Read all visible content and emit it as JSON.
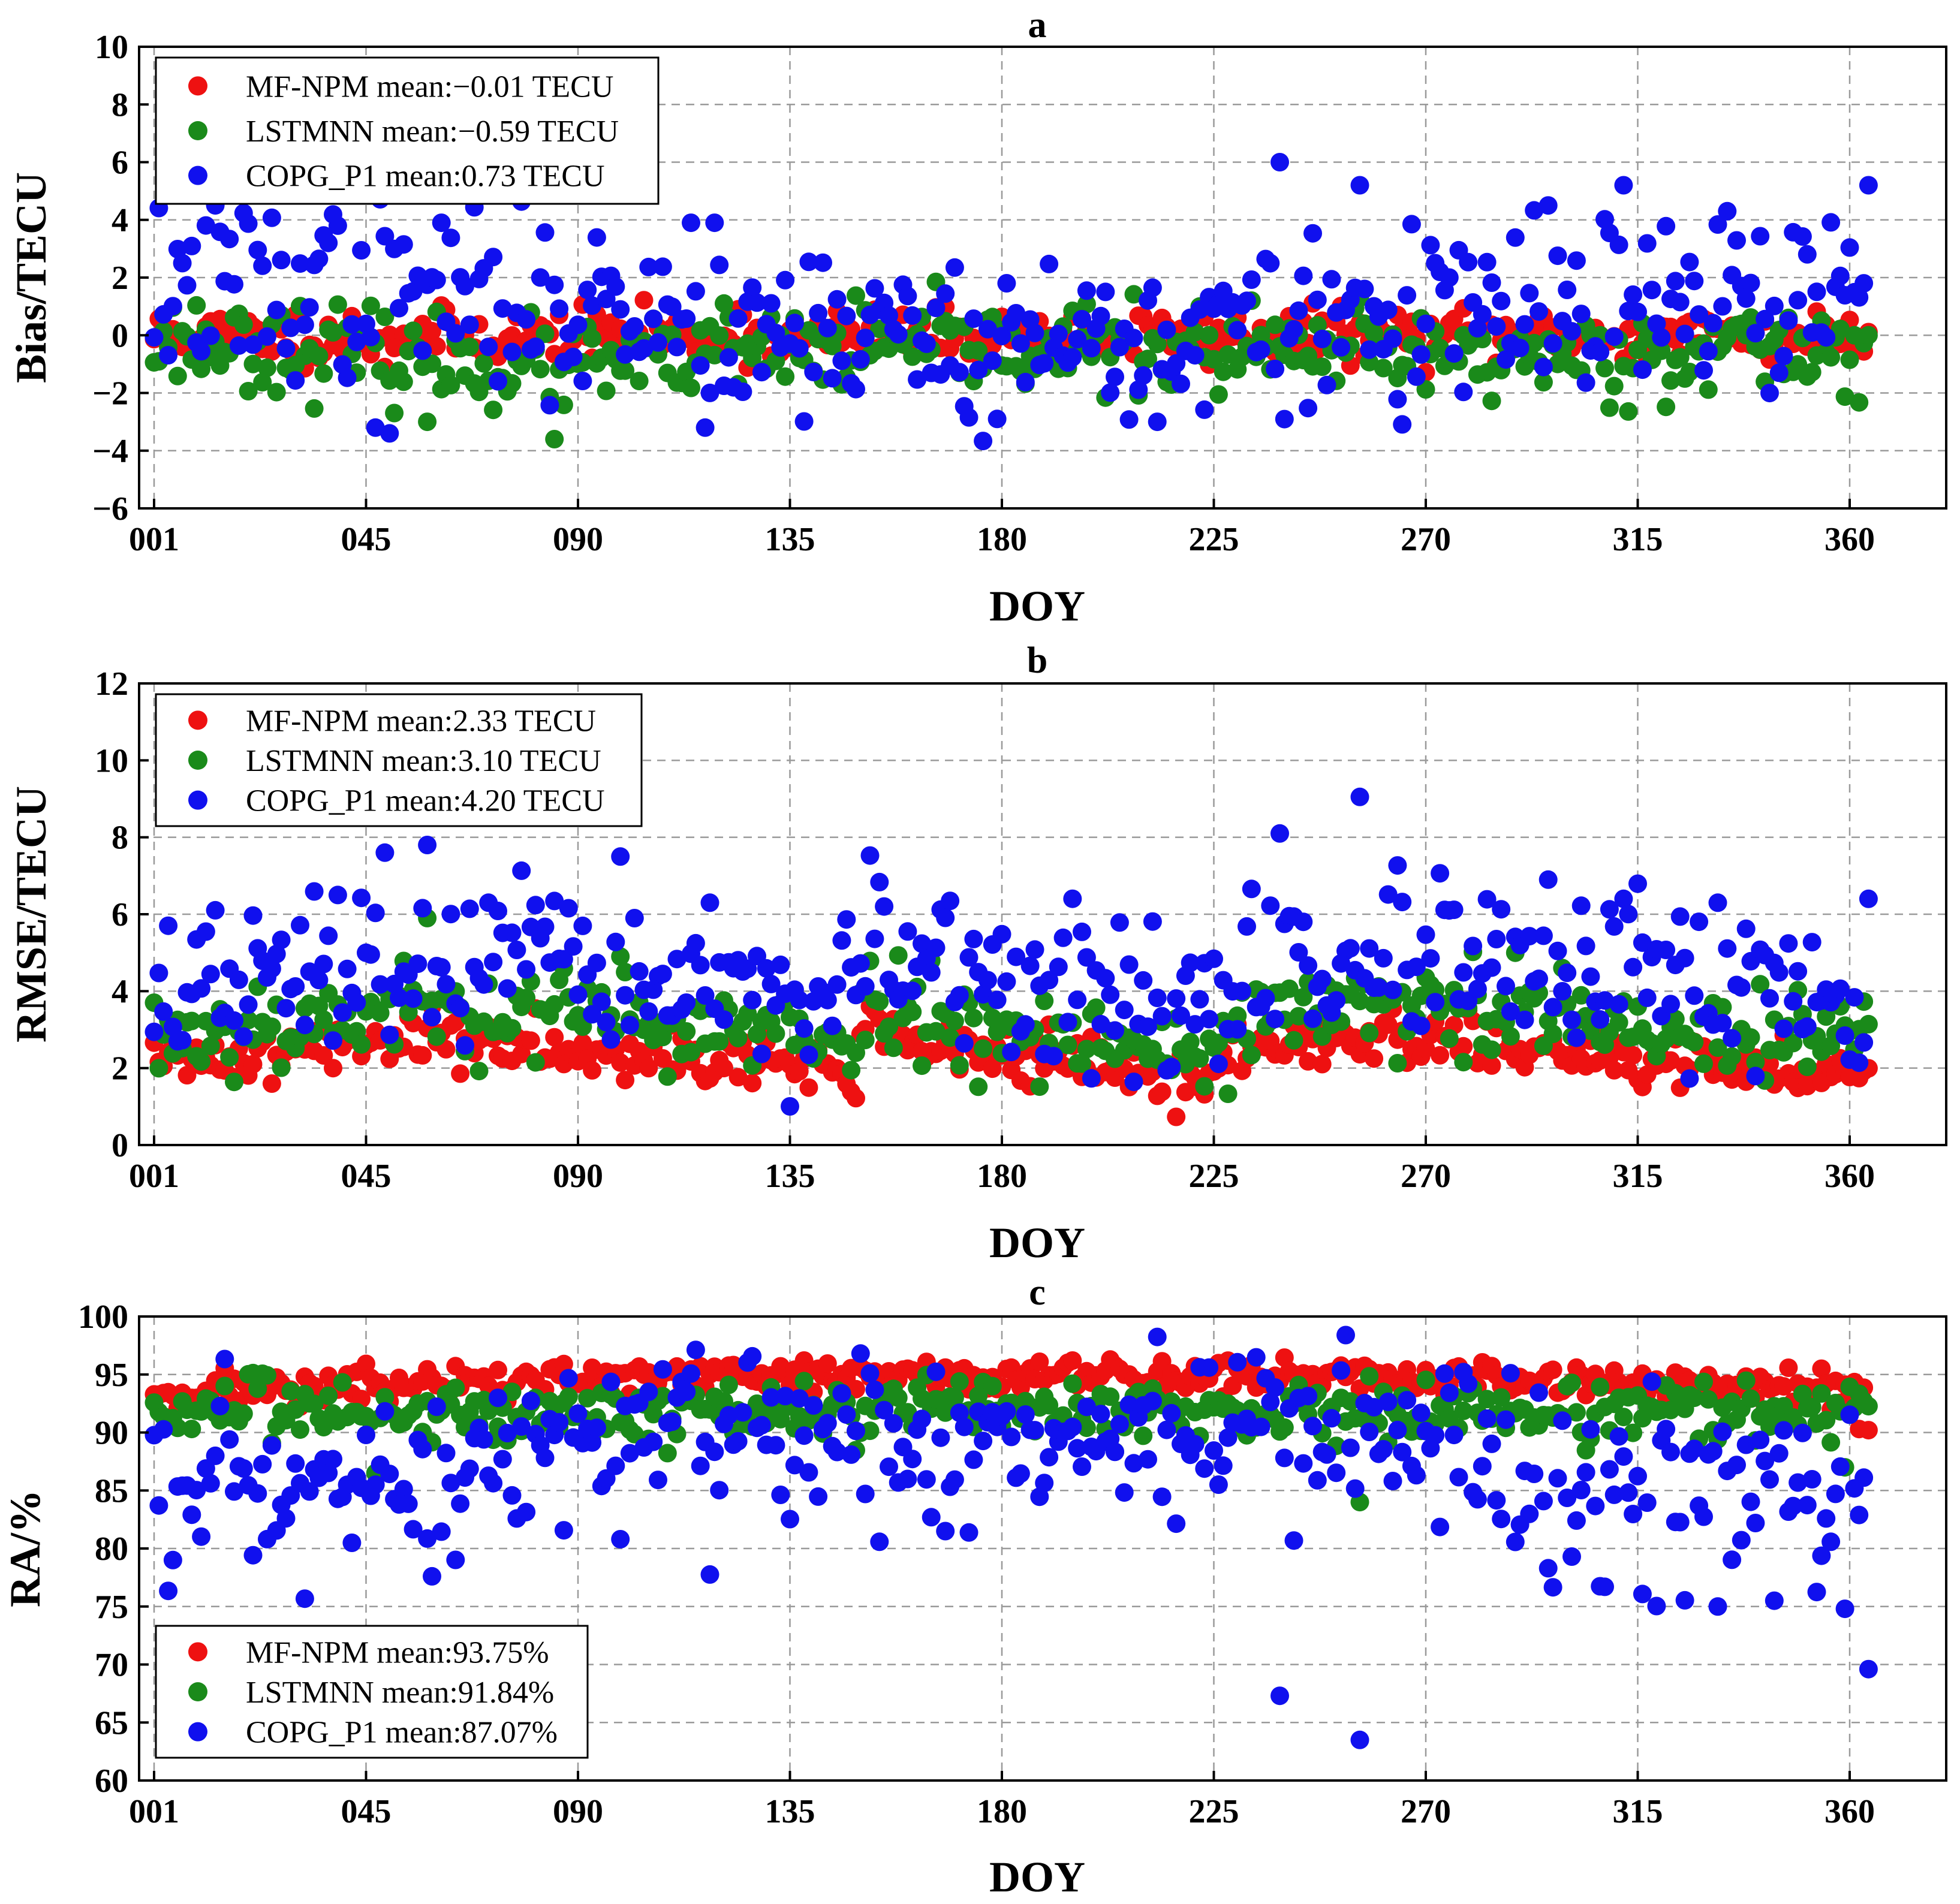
{
  "x_ticks": [
    "001",
    "045",
    "090",
    "135",
    "180",
    "225",
    "270",
    "315",
    "360"
  ],
  "chart_data": [
    {
      "id": "a",
      "type": "scatter",
      "title": "a",
      "xlabel": "DOY",
      "ylabel": "Bias/TECU",
      "xlim": [
        1,
        366
      ],
      "ylim": [
        -6,
        10
      ],
      "yticks": [
        -6,
        -4,
        -2,
        0,
        2,
        4,
        6,
        8,
        10
      ],
      "ytick_labels": [
        "−6",
        "−4",
        "−2",
        "0",
        "2",
        "4",
        "6",
        "8",
        "10"
      ],
      "legend_position": "top-left",
      "series": [
        {
          "name": "MF-NPM",
          "label": "MF-NPM mean:−0.01 TECU",
          "color": "#ee1111",
          "mean": -0.01,
          "center": -0.01,
          "spread": 0.45,
          "seed": 11,
          "highlights": [
            [
              125,
              0.9
            ],
            [
              50,
              -1.1
            ]
          ]
        },
        {
          "name": "LSTMNN",
          "label": "LSTMNN mean:−0.59 TECU",
          "color": "#1a8a1a",
          "mean": -0.59,
          "center": -0.59,
          "spread": 0.75,
          "seed": 23,
          "highlights": [
            [
              86,
              -3.6
            ],
            [
              59,
              -3.0
            ],
            [
              257,
              1.3
            ],
            [
              122,
              1.1
            ]
          ]
        },
        {
          "name": "COPG_P1",
          "label": "COPG_P1 mean:0.73 TECU",
          "color": "#1010ee",
          "mean": 0.73,
          "center": 0.73,
          "spread": 1.5,
          "seed": 37,
          "highlights": [
            [
              240,
              6.0
            ],
            [
              257,
              5.2
            ],
            [
              313,
              5.2
            ],
            [
              365,
              5.2
            ],
            [
              297,
              4.5
            ],
            [
              335,
              4.3
            ],
            [
              40,
              3.8
            ],
            [
              62,
              3.9
            ],
            [
              115,
              3.9
            ],
            [
              120,
              3.9
            ],
            [
              51,
              -3.4
            ],
            [
              48,
              -3.2
            ],
            [
              118,
              -3.2
            ],
            [
              214,
              -3.0
            ],
            [
              180,
              -2.9
            ]
          ]
        }
      ]
    },
    {
      "id": "b",
      "type": "scatter",
      "title": "b",
      "xlabel": "DOY",
      "ylabel": "RMSE/TECU",
      "xlim": [
        1,
        366
      ],
      "ylim": [
        0,
        12
      ],
      "yticks": [
        0,
        2,
        4,
        6,
        8,
        10,
        12
      ],
      "ytick_labels": [
        "0",
        "2",
        "4",
        "6",
        "8",
        "10",
        "12"
      ],
      "legend_position": "top-left",
      "series": [
        {
          "name": "MF-NPM",
          "label": "MF-NPM mean:2.33 TECU",
          "color": "#ee1111",
          "mean": 2.33,
          "center": 2.33,
          "spread": 0.35,
          "seed": 41,
          "highlights": [
            [
              50,
              4.1
            ],
            [
              60,
              3.6
            ],
            [
              280,
              3.5
            ]
          ]
        },
        {
          "name": "LSTMNN",
          "label": "LSTMNN mean:3.10 TECU",
          "color": "#1a8a1a",
          "mean": 3.1,
          "center": 3.1,
          "spread": 0.6,
          "seed": 53,
          "highlights": [
            [
              59,
              5.9
            ],
            [
              100,
              4.9
            ],
            [
              290,
              5.0
            ],
            [
              300,
              4.6
            ]
          ]
        },
        {
          "name": "COPG_P1",
          "label": "COPG_P1 mean:4.20 TECU",
          "color": "#1010ee",
          "mean": 4.2,
          "center": 4.2,
          "spread": 1.0,
          "seed": 67,
          "highlights": [
            [
              257,
              9.05
            ],
            [
              240,
              8.1
            ],
            [
              59,
              7.8
            ],
            [
              50,
              7.6
            ],
            [
              100,
              7.5
            ],
            [
              297,
              6.9
            ],
            [
              40,
              6.5
            ],
            [
              365,
              6.4
            ],
            [
              313,
              6.4
            ],
            [
              333,
              6.3
            ],
            [
              119,
              6.3
            ]
          ]
        }
      ]
    },
    {
      "id": "c",
      "type": "scatter",
      "title": "c",
      "xlabel": "DOY",
      "ylabel": "RA/%",
      "xlim": [
        1,
        366
      ],
      "ylim": [
        60,
        100
      ],
      "yticks": [
        60,
        65,
        70,
        75,
        80,
        85,
        90,
        95,
        100
      ],
      "ytick_labels": [
        "60",
        "65",
        "70",
        "75",
        "80",
        "85",
        "90",
        "95",
        "100"
      ],
      "legend_position": "bottom-left",
      "series": [
        {
          "name": "MF-NPM",
          "label": "MF-NPM mean:93.75%",
          "color": "#ee1111",
          "mean": 93.75,
          "center": 93.75,
          "spread": 0.8,
          "seed": 71,
          "highlights": [
            [
              139,
              96.2
            ],
            [
              189,
              96.1
            ],
            [
              88,
              95.9
            ],
            [
              335,
              94.2
            ],
            [
              357,
              92.0
            ],
            [
              363,
              90.3
            ],
            [
              365,
              90.2
            ]
          ]
        },
        {
          "name": "LSTMNN",
          "label": "LSTMNN mean:91.84%",
          "color": "#1a8a1a",
          "mean": 91.84,
          "center": 91.84,
          "spread": 1.3,
          "seed": 83,
          "highlights": [
            [
              257,
              84.0
            ],
            [
              48,
              86.5
            ],
            [
              360,
              87.0
            ]
          ]
        },
        {
          "name": "COPG_P1",
          "label": "COPG_P1 mean:87.07%",
          "color": "#1010ee",
          "mean": 87.07,
          "center": 87.07,
          "spread": 4.0,
          "seed": 97,
          "highlights": [
            [
              257,
              63.5
            ],
            [
              240,
              67.3
            ],
            [
              365,
              69.6
            ],
            [
              333,
              75.0
            ],
            [
              360,
              74.8
            ],
            [
              345,
              75.5
            ],
            [
              60,
              77.6
            ],
            [
              5,
              79.0
            ],
            [
              100,
              80.8
            ],
            [
              169,
              81.5
            ],
            [
              297,
              78.3
            ],
            [
              309,
              76.7
            ]
          ]
        }
      ]
    }
  ]
}
